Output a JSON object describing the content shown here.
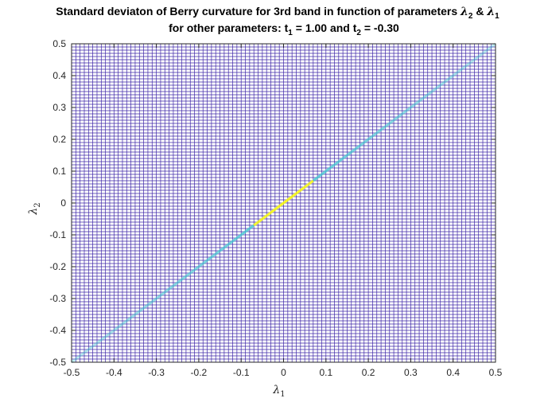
{
  "chart_data": {
    "type": "heatmap",
    "title_parts": [
      "Standard deviaton of Berry curvature for 3rd band in function of parameters ",
      "λ",
      "2",
      " & ",
      "λ",
      "1"
    ],
    "subtitle_parts": [
      "for other parameters: t",
      "1",
      " = 1.00 and t",
      "2",
      " = -0.30"
    ],
    "xlabel": {
      "symbol": "λ",
      "sub": "1"
    },
    "ylabel": {
      "symbol": "λ",
      "sub": "2"
    },
    "xlim": [
      -0.5,
      0.5
    ],
    "ylim": [
      -0.5,
      0.5
    ],
    "xticks": [
      -0.5,
      -0.4,
      -0.3,
      -0.2,
      -0.1,
      0,
      0.1,
      0.2,
      0.3,
      0.4,
      0.5
    ],
    "yticks": [
      -0.5,
      -0.4,
      -0.3,
      -0.2,
      -0.1,
      0,
      0.1,
      0.2,
      0.3,
      0.4,
      0.5
    ],
    "xticklabels": [
      "-0.5",
      "-0.4",
      "-0.3",
      "-0.2",
      "-0.1",
      "0",
      "0.1",
      "0.2",
      "0.3",
      "0.4",
      "0.5"
    ],
    "yticklabels": [
      "-0.5",
      "-0.4",
      "-0.3",
      "-0.2",
      "-0.1",
      "0",
      "0.1",
      "0.2",
      "0.3",
      "0.4",
      "0.5"
    ],
    "grid_resolution": 101,
    "surface": "mesh",
    "colormap": "parula",
    "colors": {
      "mesh_low": "#3e26a8",
      "ridge_mid": "#46c8d2",
      "ridge_peak": "#f9fb0e"
    },
    "ridge": {
      "line": "lambda2 = lambda1",
      "base_value": 0.0,
      "peak_value": 1.0,
      "peak_at": [
        0,
        0
      ]
    }
  }
}
